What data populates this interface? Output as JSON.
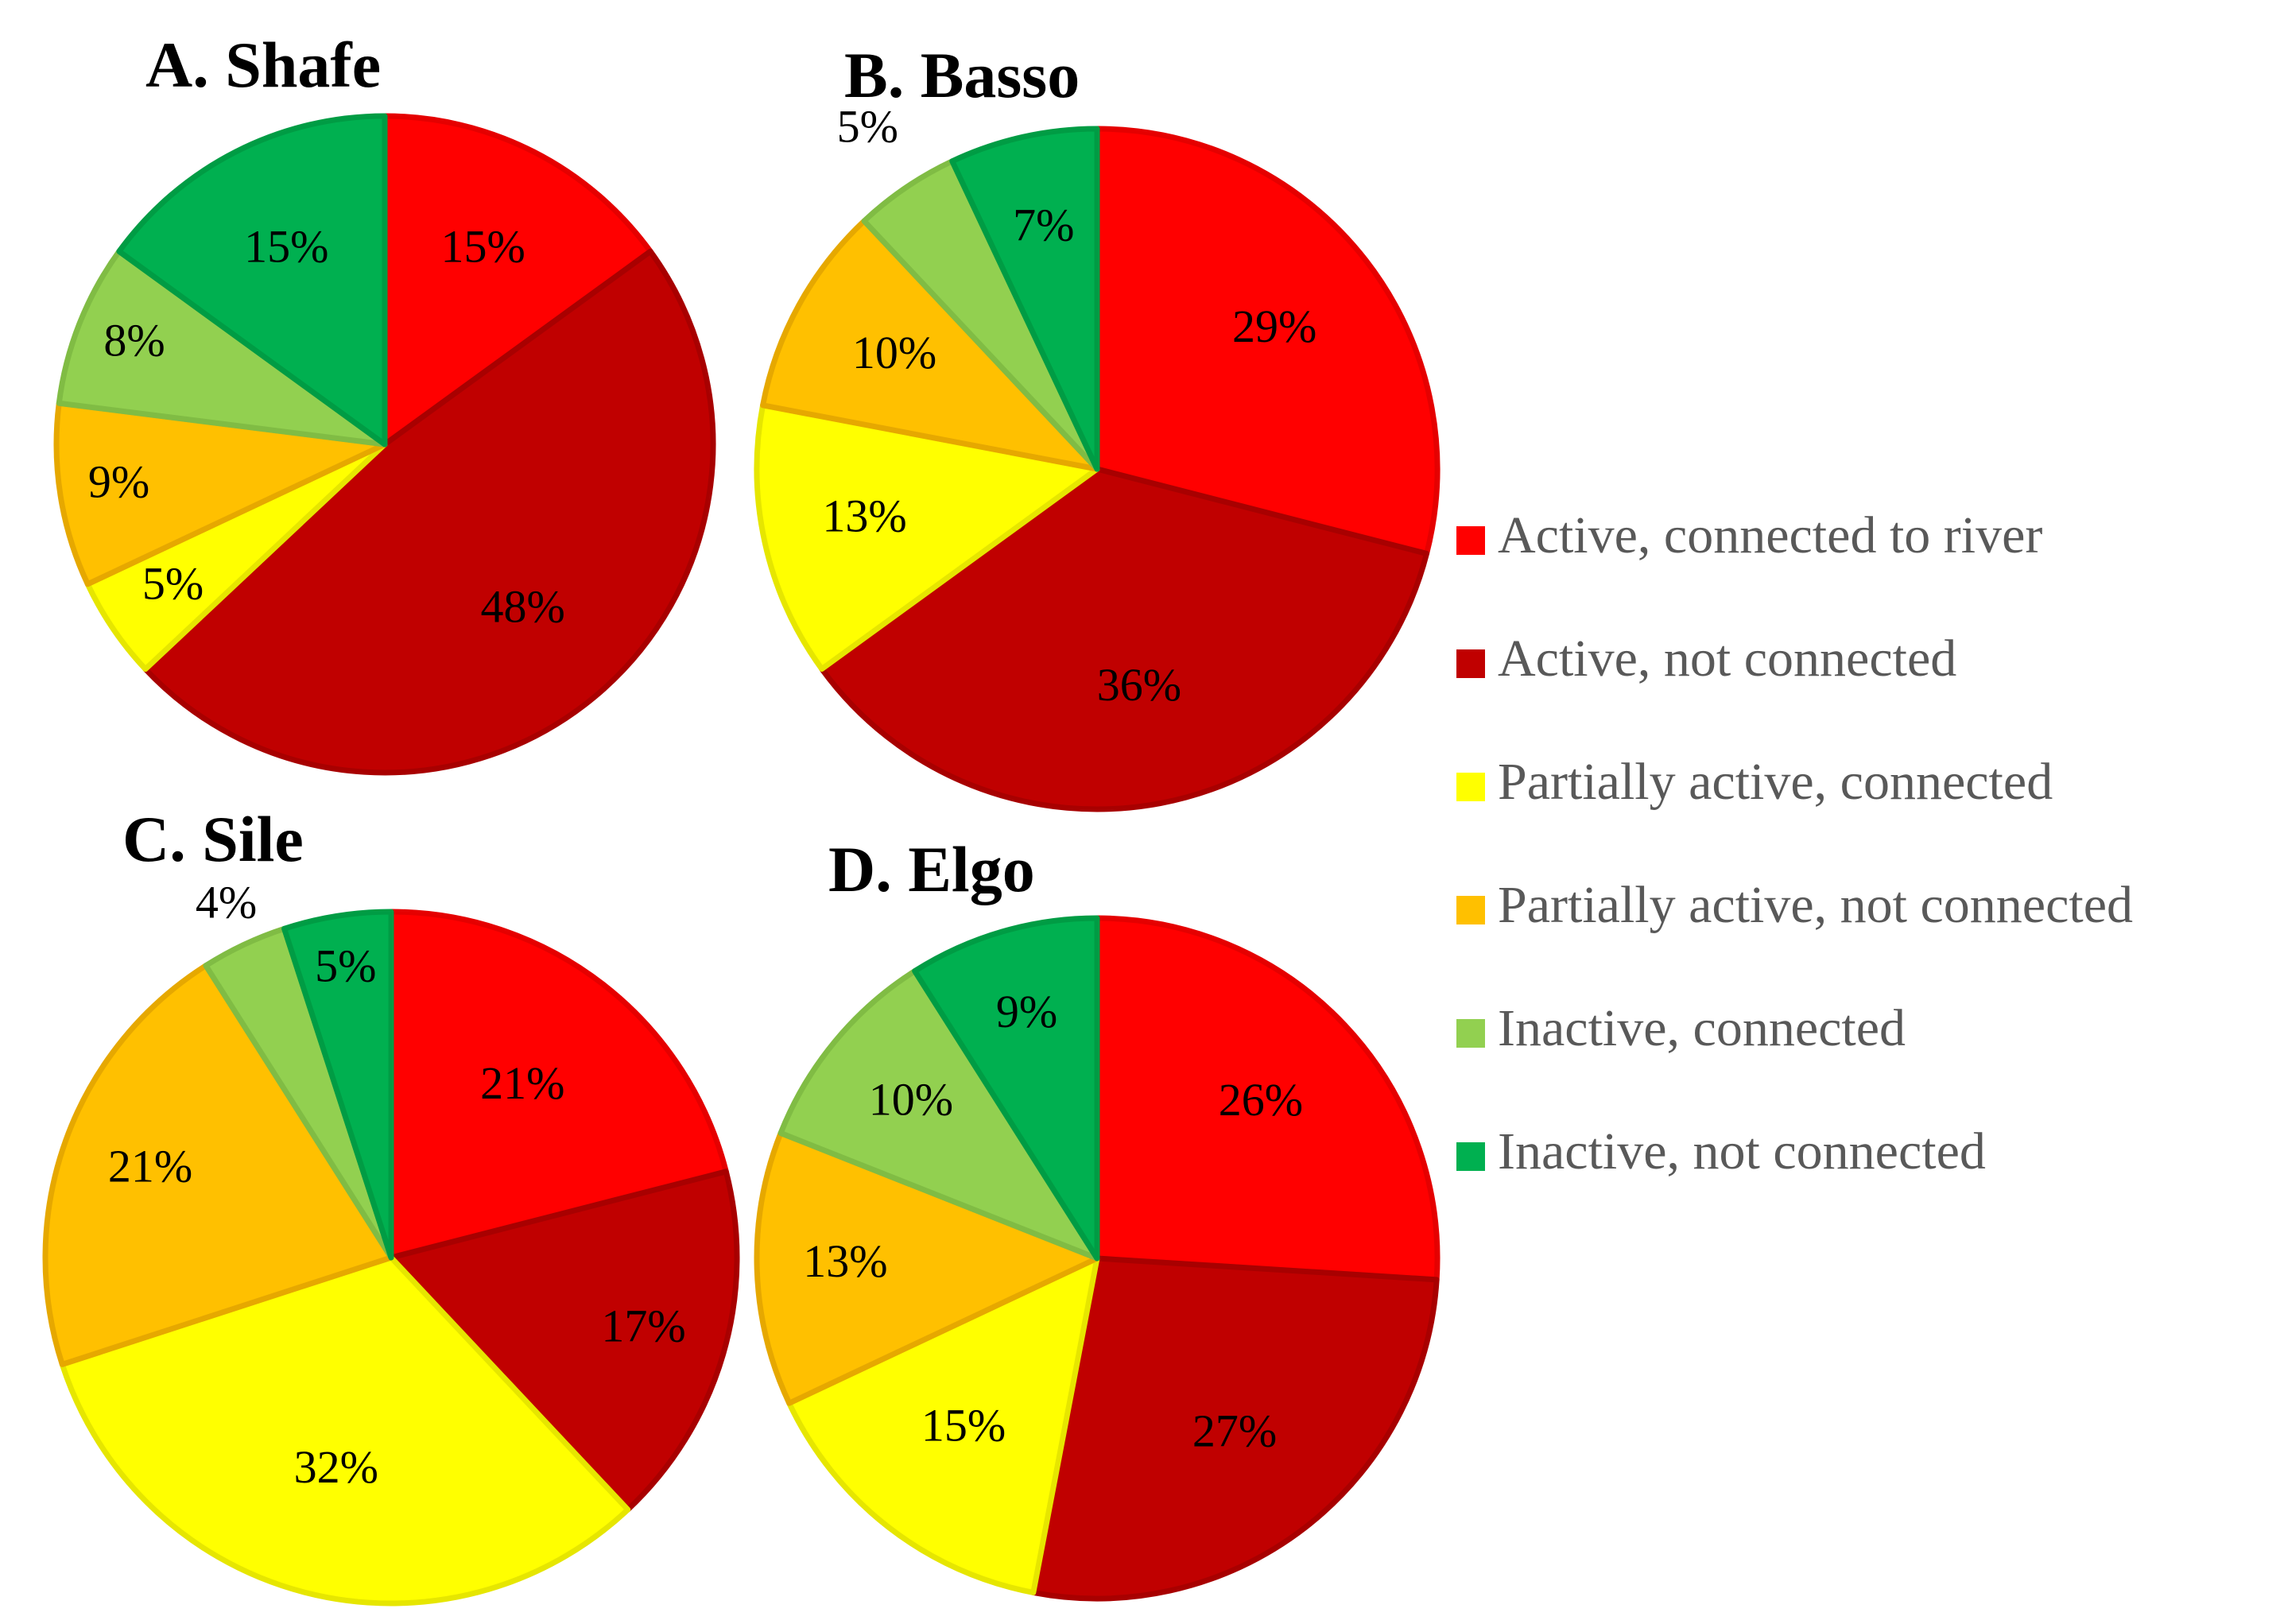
{
  "chart_data": [
    {
      "type": "pie",
      "title": "A.  Shafe",
      "categories": [
        "Active, connected to river",
        "Active, not connected",
        "Partially active, connected",
        "Partially active, not connected",
        "Inactive, connected",
        "Inactive, not connected"
      ],
      "values": [
        15,
        48,
        5,
        9,
        8,
        15
      ],
      "labels": [
        "15%",
        "48%",
        "5%",
        "9%",
        "8%",
        "15%"
      ]
    },
    {
      "type": "pie",
      "title": "B.  Basso",
      "categories": [
        "Active, connected to river",
        "Active, not connected",
        "Partially active, connected",
        "Partially active, not connected",
        "Inactive, connected",
        "Inactive, not connected"
      ],
      "values": [
        29,
        36,
        13,
        10,
        5,
        7
      ],
      "labels": [
        "29%",
        "36%",
        "13%",
        "10%",
        "5%",
        "7%"
      ]
    },
    {
      "type": "pie",
      "title": "C.  Sile",
      "categories": [
        "Active, connected to river",
        "Active, not connected",
        "Partially active, connected",
        "Partially active, not connected",
        "Inactive, connected",
        "Inactive, not connected"
      ],
      "values": [
        21,
        17,
        32,
        21,
        4,
        5
      ],
      "labels": [
        "21%",
        "17%",
        "32%",
        "21%",
        "4%",
        "5%"
      ]
    },
    {
      "type": "pie",
      "title": "D.  Elgo",
      "categories": [
        "Active, connected to river",
        "Active, not connected",
        "Partially active, connected",
        "Partially active, not connected",
        "Inactive, connected",
        "Inactive, not connected"
      ],
      "values": [
        26,
        27,
        15,
        13,
        10,
        9
      ],
      "labels": [
        "26%",
        "27%",
        "15%",
        "13%",
        "10%",
        "9%"
      ]
    }
  ],
  "legend": [
    {
      "label": "Active, connected to river",
      "color": "#ff0000"
    },
    {
      "label": "Active, not connected",
      "color": "#c00000"
    },
    {
      "label": "Partially active, connected",
      "color": "#ffff00"
    },
    {
      "label": "Partially active, not connected",
      "color": "#ffc000"
    },
    {
      "label": "Inactive, connected",
      "color": "#92d050"
    },
    {
      "label": "Inactive, not connected",
      "color": "#00b050"
    }
  ],
  "stroke_colors": [
    "#e50000",
    "#a80000",
    "#e6e600",
    "#e6a800",
    "#80bc44",
    "#009c44"
  ]
}
